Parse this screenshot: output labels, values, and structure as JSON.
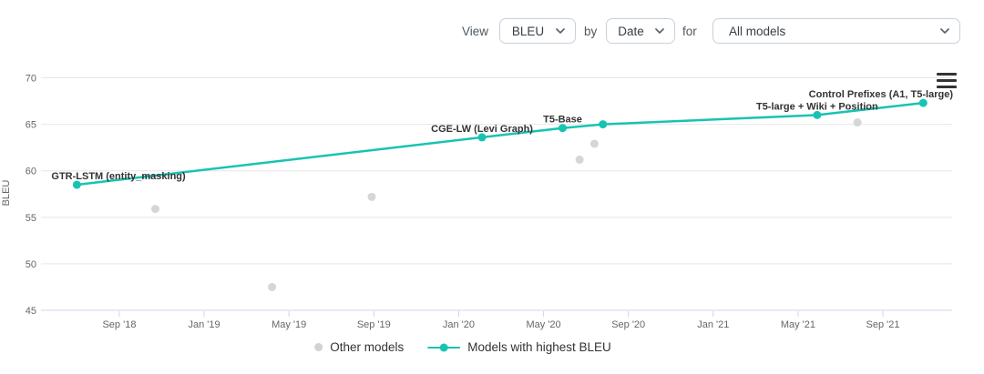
{
  "controls": {
    "view_label": "View",
    "metric_select": {
      "value": "BLEU"
    },
    "by_label": "by",
    "axis_select": {
      "value": "Date"
    },
    "for_label": "for",
    "models_select": {
      "value": "All models"
    }
  },
  "legend": {
    "other_label": "Other models",
    "highlight_label": "Models with highest BLEU"
  },
  "icons": {
    "dropdown": "chevron-down-icon",
    "chart_menu": "hamburger-icon"
  },
  "colors": {
    "highlight": "#18c3b2",
    "other_models": "#d2d2d2",
    "gridline": "#e6e6e6",
    "axis_line": "#ccd6eb",
    "tick_text": "#666666",
    "data_label_text": "#333333"
  },
  "chart_data": {
    "type": "line",
    "title": "",
    "xlabel": "",
    "ylabel": "BLEU",
    "ylim": [
      45,
      70
    ],
    "grid": "horizontal",
    "legend_position": "bottom-center",
    "y_ticks": [
      45,
      50,
      55,
      60,
      65,
      70
    ],
    "x_ticks": [
      {
        "label": "Sep '18",
        "m": 2
      },
      {
        "label": "Jan '19",
        "m": 6
      },
      {
        "label": "May '19",
        "m": 10
      },
      {
        "label": "Sep '19",
        "m": 14
      },
      {
        "label": "Jan '20",
        "m": 18
      },
      {
        "label": "May '20",
        "m": 22
      },
      {
        "label": "Sep '20",
        "m": 26
      },
      {
        "label": "Jan '21",
        "m": 30
      },
      {
        "label": "May '21",
        "m": 34
      },
      {
        "label": "Sep '21",
        "m": 38
      }
    ],
    "x_axis_note": "m = months after Jul 2018",
    "series": [
      {
        "name": "Other models",
        "type": "scatter",
        "color": "#d2d2d2",
        "points": [
          {
            "date": "Oct '18",
            "m": 3.7,
            "bleu": 55.9
          },
          {
            "date": "Apr '19",
            "m": 9.2,
            "bleu": 47.5
          },
          {
            "date": "Aug '19",
            "m": 13.9,
            "bleu": 57.2
          },
          {
            "date": "Jun '20",
            "m": 23.7,
            "bleu": 61.2
          },
          {
            "date": "Jul '20",
            "m": 24.4,
            "bleu": 62.9
          },
          {
            "date": "Aug '21",
            "m": 36.8,
            "bleu": 65.2
          }
        ]
      },
      {
        "name": "Models with highest BLEU",
        "type": "line",
        "color": "#18c3b2",
        "points": [
          {
            "date": "Jul '18",
            "m": 0.0,
            "bleu": 58.5,
            "label": "GTR-LSTM (entity_masking)",
            "label_align": "left"
          },
          {
            "date": "Feb '20",
            "m": 19.1,
            "bleu": 63.6,
            "label": "CGE-LW (Levi Graph)",
            "label_align": "center"
          },
          {
            "date": "May '20",
            "m": 22.9,
            "bleu": 64.6,
            "label": "T5-Base",
            "label_align": "center"
          },
          {
            "date": "Jul '20",
            "m": 24.8,
            "bleu": 65.0,
            "label": "",
            "label_align": "center"
          },
          {
            "date": "Jun '21",
            "m": 34.9,
            "bleu": 66.0,
            "label": "T5-large + Wiki + Position",
            "label_align": "center"
          },
          {
            "date": "Oct '21",
            "m": 39.9,
            "bleu": 67.3,
            "label": "Control Prefixes (A1, T5-large)",
            "label_align": "right"
          }
        ]
      }
    ]
  }
}
